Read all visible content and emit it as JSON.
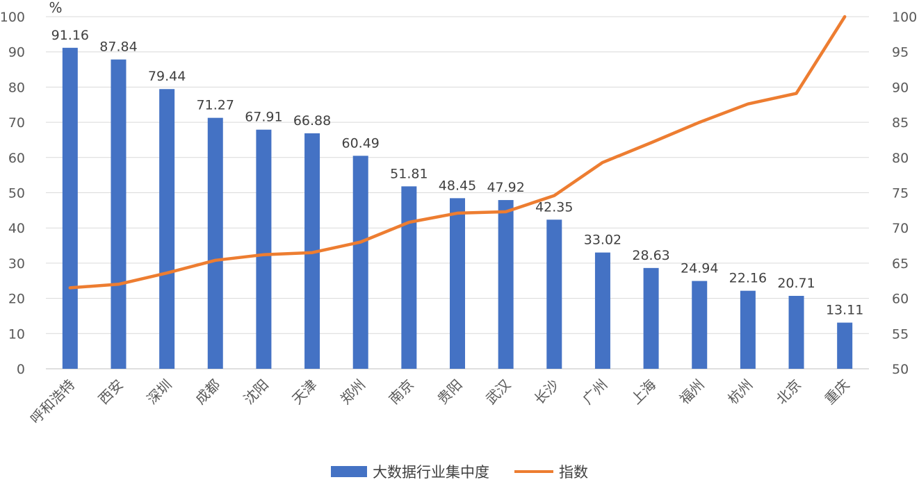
{
  "chart_data": {
    "type": "bar",
    "categories": [
      "呼和浩特",
      "西安",
      "深圳",
      "成都",
      "沈阳",
      "天津",
      "郑州",
      "南京",
      "贵阳",
      "武汉",
      "长沙",
      "广州",
      "上海",
      "福州",
      "杭州",
      "北京",
      "重庆"
    ],
    "series": [
      {
        "name": "大数据行业集中度",
        "type": "bar",
        "axis": "left",
        "color": "#4472C4",
        "values": [
          91.16,
          87.84,
          79.44,
          71.27,
          67.91,
          66.88,
          60.49,
          51.81,
          48.45,
          47.92,
          42.35,
          33.02,
          28.63,
          24.94,
          22.16,
          20.71,
          13.11
        ],
        "labels": [
          "91.16",
          "87.84",
          "79.44",
          "71.27",
          "67.91",
          "66.88",
          "60.49",
          "51.81",
          "48.45",
          "47.92",
          "42.35",
          "33.02",
          "28.63",
          "24.94",
          "22.16",
          "20.71",
          "13.11"
        ]
      },
      {
        "name": "指数",
        "type": "line",
        "axis": "right",
        "color": "#ED7D31",
        "values": [
          61.5,
          62.0,
          63.6,
          65.4,
          66.2,
          66.5,
          68.0,
          70.8,
          72.1,
          72.3,
          74.6,
          79.3,
          82.1,
          85.0,
          87.6,
          89.1,
          100.0
        ]
      }
    ],
    "y_left": {
      "min": 0,
      "max": 100,
      "ticks": [
        "0",
        "10",
        "20",
        "30",
        "40",
        "50",
        "60",
        "70",
        "80",
        "90",
        "100"
      ],
      "unit": "%"
    },
    "y_right": {
      "min": 50,
      "max": 100,
      "ticks": [
        "50",
        "55",
        "60",
        "65",
        "70",
        "75",
        "80",
        "85",
        "90",
        "95",
        "100"
      ]
    },
    "grid": true,
    "legend": "bottom"
  }
}
